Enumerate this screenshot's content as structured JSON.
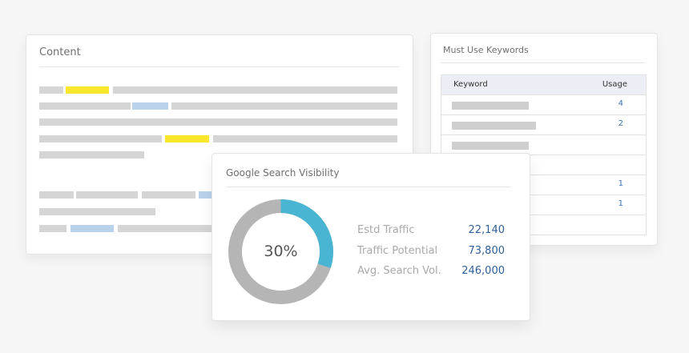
{
  "content": {
    "title": "Content"
  },
  "keywords": {
    "title": "Must Use Keywords",
    "columns": [
      "Keyword",
      "Usage"
    ],
    "rows": [
      {
        "usage": "4"
      },
      {
        "usage": "2"
      },
      {
        "usage": ""
      },
      {
        "usage": ""
      },
      {
        "usage": "1"
      },
      {
        "usage": "1"
      },
      {
        "usage": ""
      }
    ]
  },
  "visibility": {
    "title": "Google Search Visibility",
    "percent_label": "30%",
    "percent_value": 30,
    "colors": {
      "filled": "#4ab5d2",
      "remaining": "#b5b5b5"
    },
    "stats": [
      {
        "label": "Estd Traffic",
        "value": "22,140"
      },
      {
        "label": "Traffic Potential",
        "value": "73,800"
      },
      {
        "label": "Avg. Search Vol.",
        "value": "246,000"
      }
    ]
  }
}
